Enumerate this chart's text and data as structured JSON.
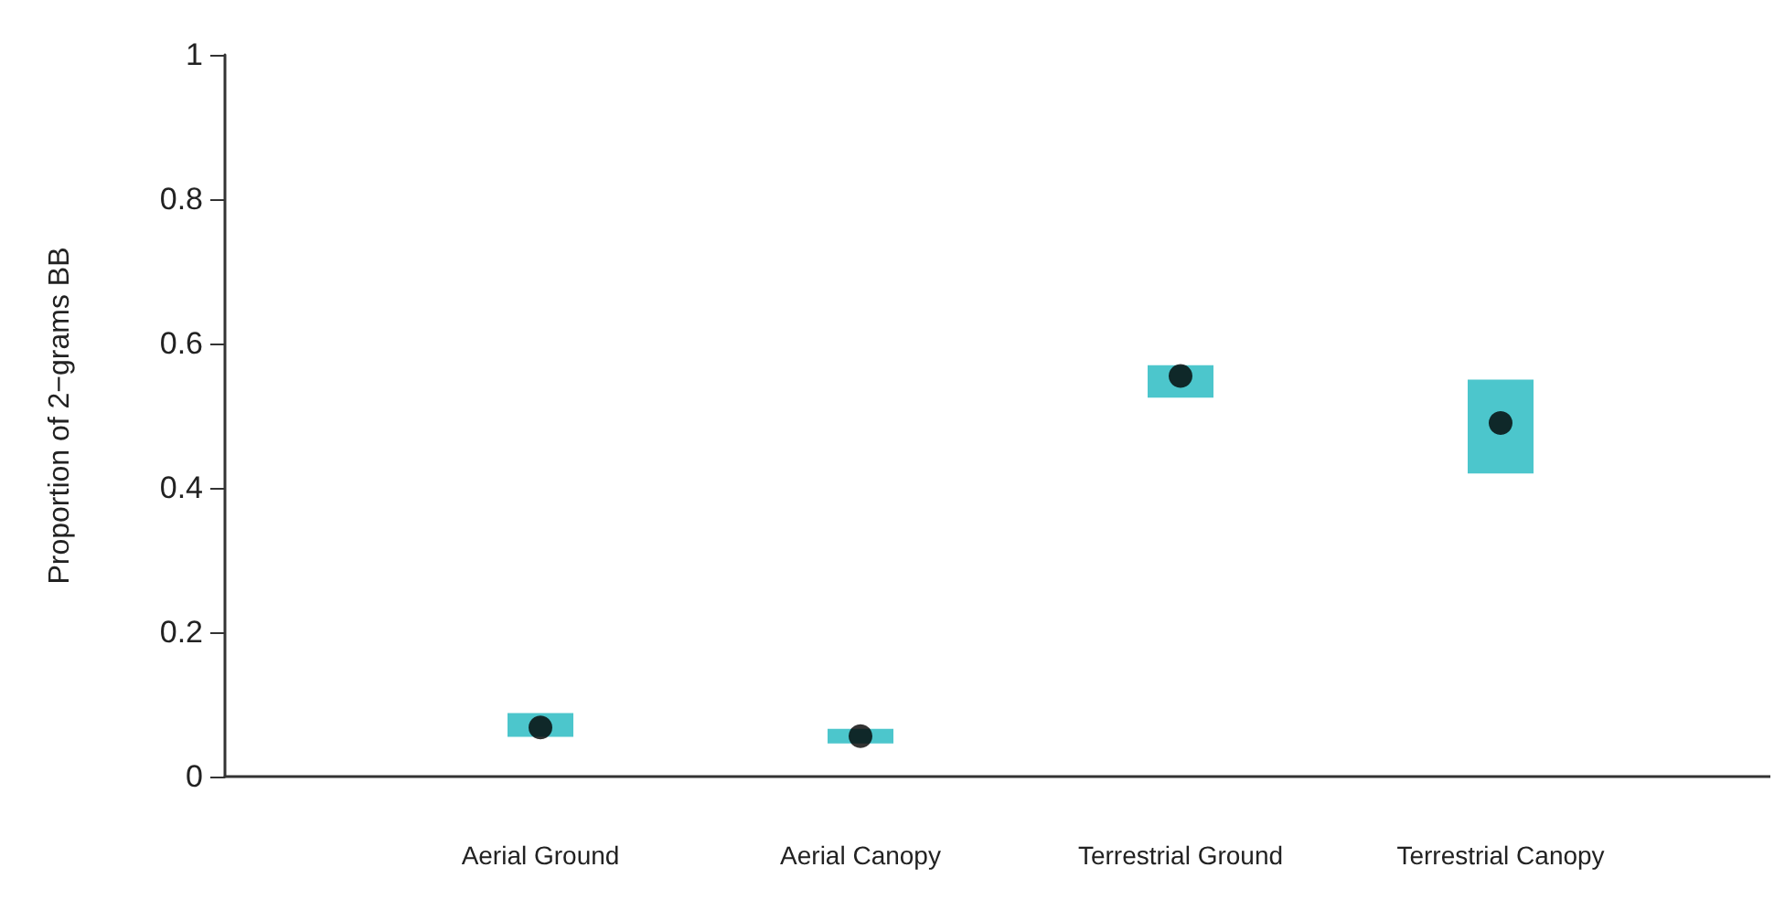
{
  "chart_data": {
    "type": "bar",
    "ylabel": "Proportion of 2−grams BB",
    "categories": [
      "Aerial Ground",
      "Aerial Canopy",
      "Terrestrial Ground",
      "Terrestrial Canopy"
    ],
    "series": [
      {
        "color": "#4cc6cc",
        "base": [
          0.055,
          0.046,
          0.525,
          0.42
        ],
        "values": [
          0.033,
          0.02,
          0.045,
          0.13
        ]
      },
      {
        "type": "scatter",
        "color": "#000000",
        "x": [
          "Aerial Ground",
          "Aerial Canopy",
          "Terrestrial Ground",
          "Terrestrial Canopy"
        ],
        "values": [
          0.068,
          0.056,
          0.555,
          0.49
        ]
      }
    ],
    "ylim": [
      0,
      1
    ],
    "yticks": [
      0,
      0.2,
      0.4,
      0.6,
      0.8,
      1
    ],
    "grid": false,
    "marker": "circle"
  }
}
